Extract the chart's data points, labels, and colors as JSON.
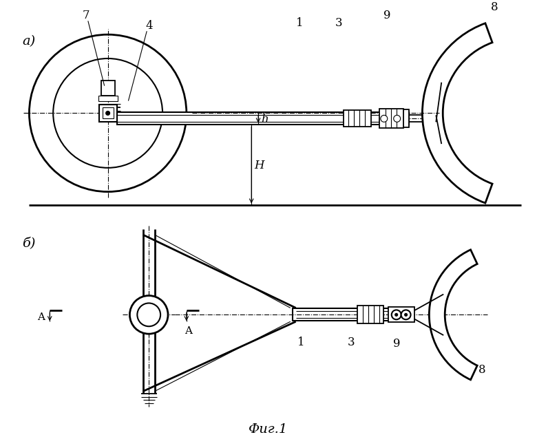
{
  "bg_color": "#ffffff",
  "line_color": "#000000",
  "fig_title": "Фиг.1",
  "label_a": "а)",
  "label_b": "б)",
  "lw": 1.3,
  "lw_thick": 2.0,
  "lw_thin": 0.8,
  "lw_medium": 1.5
}
